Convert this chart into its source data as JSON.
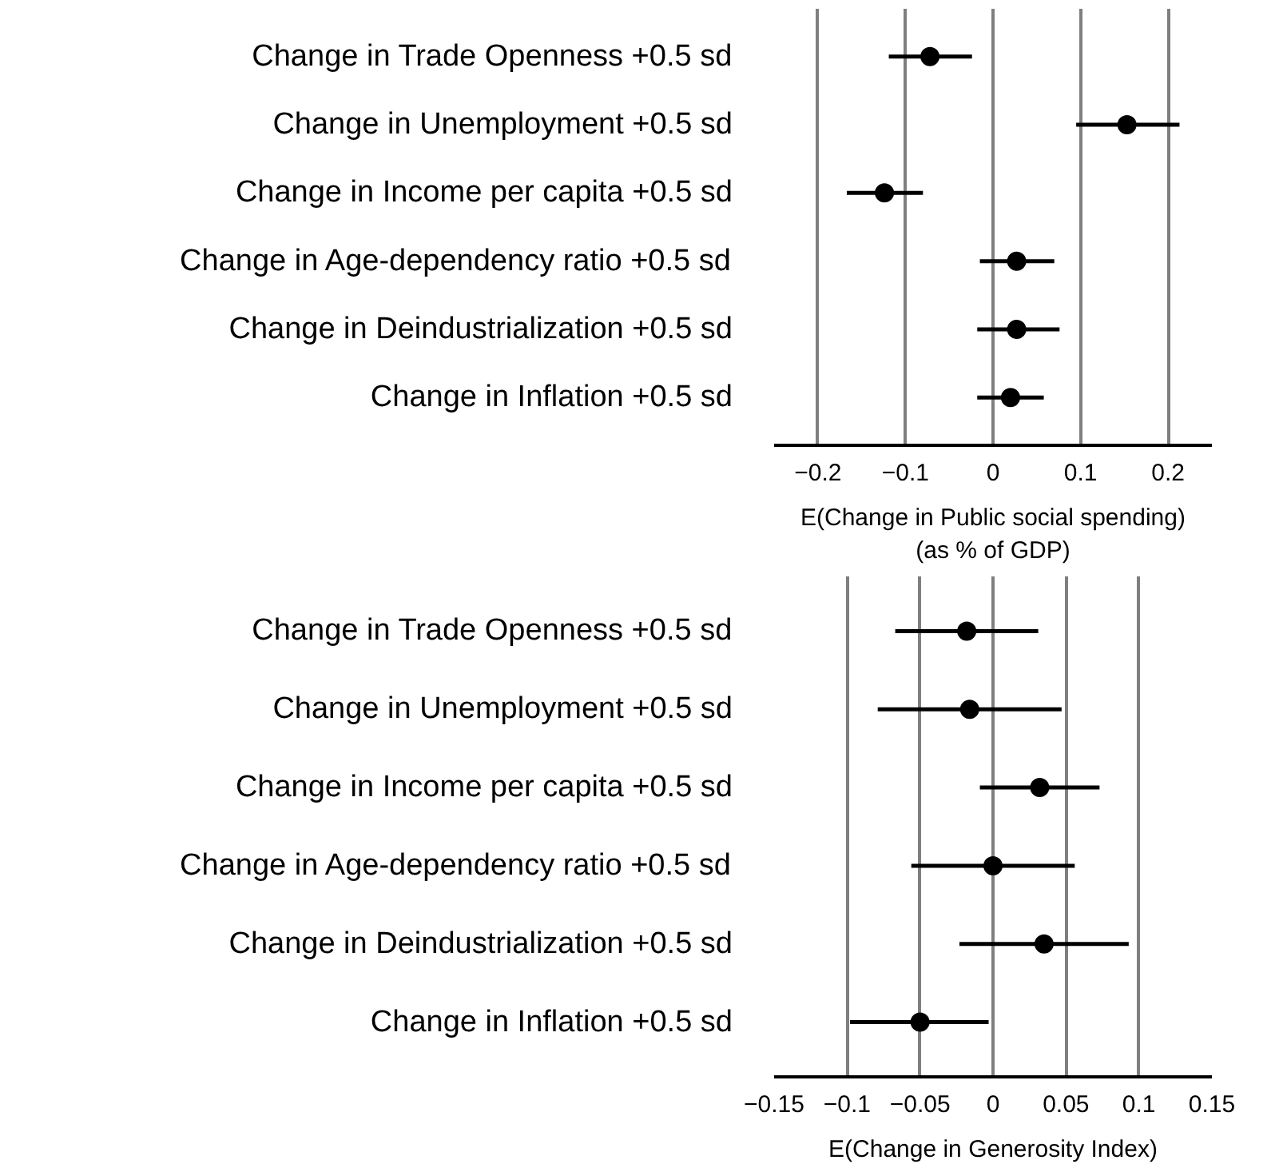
{
  "chart_data": [
    {
      "type": "scatter",
      "orientation": "horizontal",
      "categories": [
        "Change in Trade Openness +0.5 sd",
        "Change in Unemployment +0.5 sd",
        "Change in Income per capita +0.5 sd",
        "Change in Age-dependency ratio +0.5 sd",
        "Change in Deindustrialization +0.5 sd",
        "Change in Inflation +0.5 sd"
      ],
      "series": [
        {
          "color": "#000000",
          "values": [
            -0.072,
            0.153,
            -0.124,
            0.027,
            0.027,
            0.02
          ],
          "errors": [
            [
              -0.119,
              -0.024
            ],
            [
              0.095,
              0.213
            ],
            [
              -0.167,
              -0.08
            ],
            [
              -0.015,
              0.07
            ],
            [
              -0.018,
              0.076
            ],
            [
              -0.018,
              0.058
            ]
          ]
        }
      ],
      "xlabel": "E(Change in Public social spending)\n(as % of GDP)",
      "xlim": [
        -0.25,
        0.25
      ],
      "xticks": [
        {
          "value": -0.2,
          "label": "−0.2"
        },
        {
          "value": -0.1,
          "label": "−0.1"
        },
        0,
        0.1,
        0.2
      ],
      "grid": "x",
      "marker": "circle"
    },
    {
      "type": "scatter",
      "orientation": "horizontal",
      "categories": [
        "Change in Trade Openness +0.5 sd",
        "Change in Unemployment +0.5 sd",
        "Change in Income per capita +0.5 sd",
        "Change in Age-dependency ratio +0.5 sd",
        "Change in Deindustrialization +0.5 sd",
        "Change in Inflation +0.5 sd"
      ],
      "series": [
        {
          "color": "#000000",
          "values": [
            -0.018,
            -0.016,
            0.032,
            0.0,
            0.035,
            -0.05
          ],
          "errors": [
            [
              -0.067,
              0.031
            ],
            [
              -0.079,
              0.047
            ],
            [
              -0.009,
              0.073
            ],
            [
              -0.056,
              0.056
            ],
            [
              -0.023,
              0.093
            ],
            [
              -0.098,
              -0.003
            ]
          ]
        }
      ],
      "xlabel": "E(Change in Generosity Index)",
      "xlim": [
        -0.15,
        0.15
      ],
      "xticks": [
        {
          "value": -0.15,
          "label": "−0.15"
        },
        {
          "value": -0.1,
          "label": "−0.1"
        },
        {
          "value": -0.05,
          "label": "−0.05"
        },
        0,
        0.05,
        0.1,
        0.15
      ],
      "grid": "x",
      "marker": "circle"
    }
  ]
}
